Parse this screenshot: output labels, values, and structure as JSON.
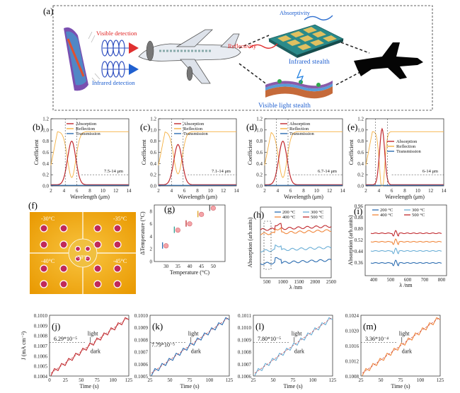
{
  "panel_a": {
    "label": "(a)",
    "visible_detection": "Visible detection",
    "infrared_detection": "Infrared detection",
    "absorptivity": "Absorptivity",
    "reflectivity": "Reflectivity",
    "infrared_stealth": "Infrared stealth",
    "visible_light_stealth": "Visible light stealth"
  },
  "spectra_panels": [
    {
      "label": "(b)",
      "range_note": "7.5-14 μm",
      "legend": [
        "Absorption",
        "Reflection",
        "Transmission"
      ],
      "ylabel": "Coefficient",
      "xlabel": "Wavelength (μm)"
    },
    {
      "label": "(c)",
      "range_note": "7.1-14 μm",
      "legend": [
        "Absorption",
        "Reflection",
        "Transmission"
      ],
      "ylabel": "Coefficient",
      "xlabel": "Wavelength (μm)"
    },
    {
      "label": "(d)",
      "range_note": "6.7-14 μm",
      "legend": [
        "Absorption",
        "Reflection",
        "Transmission"
      ],
      "ylabel": "Coefficient",
      "xlabel": "Wavelength (μm)"
    },
    {
      "label": "(e)",
      "range_note": "6-14 μm",
      "legend": [
        "Absorption",
        "Reflection",
        "Transmission"
      ],
      "ylabel": "Coefficient",
      "xlabel": "Wavelength (μm)"
    }
  ],
  "panel_f": {
    "label": "(f)",
    "temps": [
      "-30°C",
      "-35°C",
      "-40°C",
      "-45°C",
      "-50°C"
    ]
  },
  "panel_g": {
    "label": "(g)",
    "xlabel": "Temperature (°C)",
    "ylabel": "ΔTemperature (°C)"
  },
  "panel_h": {
    "label": "(h)",
    "xlabel": "λ /nm",
    "ylabel": "Absorption (arb.units)",
    "legend": [
      "200 °C",
      "300 °C",
      "400 °C",
      "500 °C"
    ]
  },
  "panel_i": {
    "label": "(i)",
    "xlabel": "λ /nm",
    "ylabel": "Absorption (arb.units)",
    "legend": [
      "200 °C",
      "300 °C",
      "400 °C",
      "500 °C"
    ]
  },
  "current_panels": [
    {
      "label": "(j)",
      "rate": "6.29*10⁻⁵",
      "light": "light",
      "dark": "dark",
      "ylabel": "J (mA cm⁻²)",
      "xlabel": "Time (s)"
    },
    {
      "label": "(k)",
      "rate": "7.79*10⁻⁵",
      "light": "light",
      "dark": "dark",
      "xlabel": "Time (s)"
    },
    {
      "label": "(l)",
      "rate": "7.80*10⁻⁵",
      "light": "light",
      "dark": "dark",
      "xlabel": "Time (s)"
    },
    {
      "label": "(m)",
      "rate": "3.36*10⁻⁴",
      "light": "light",
      "dark": "dark",
      "xlabel": "Time (s)"
    }
  ],
  "chart_data": [
    {
      "type": "line",
      "title": "(b)",
      "xlabel": "Wavelength (μm)",
      "ylabel": "Coefficient",
      "xlim": [
        2,
        14
      ],
      "ylim": [
        0,
        1.2
      ],
      "series": [
        {
          "name": "Absorption",
          "peak_x": 5.2,
          "peak_y": 0.78
        },
        {
          "name": "Reflection",
          "min_x": 5.2,
          "plateau": 0.97
        },
        {
          "name": "Transmission",
          "values": [
            0,
            0
          ]
        }
      ]
    },
    {
      "type": "line",
      "title": "(c)",
      "xlabel": "Wavelength (μm)",
      "ylabel": "Coefficient",
      "xlim": [
        2,
        14
      ],
      "ylim": [
        0,
        1.2
      ],
      "series": [
        {
          "name": "Absorption",
          "peak_x": 5.0,
          "peak_y": 0.72
        },
        {
          "name": "Reflection",
          "min_x": 5.0,
          "plateau": 0.97
        },
        {
          "name": "Transmission",
          "values": [
            0,
            0
          ]
        }
      ]
    },
    {
      "type": "line",
      "title": "(d)",
      "xlabel": "Wavelength (μm)",
      "ylabel": "Coefficient",
      "xlim": [
        2,
        14
      ],
      "ylim": [
        0,
        1.2
      ],
      "series": [
        {
          "name": "Absorption",
          "peak_x": 4.8,
          "peak_y": 0.78
        },
        {
          "name": "Reflection",
          "min_x": 4.8,
          "plateau": 0.97
        },
        {
          "name": "Transmission",
          "values": [
            0,
            0
          ]
        }
      ]
    },
    {
      "type": "line",
      "title": "(e)",
      "xlabel": "Wavelength (μm)",
      "ylabel": "Coefficient",
      "xlim": [
        2,
        14
      ],
      "ylim": [
        0,
        1.2
      ],
      "series": [
        {
          "name": "Absorption",
          "peak_x": 4.5,
          "peak_y": 1.0
        },
        {
          "name": "Reflection",
          "min_x": 4.5,
          "plateau": 0.97
        },
        {
          "name": "Transmission",
          "values": [
            0,
            0
          ]
        }
      ]
    },
    {
      "type": "scatter",
      "title": "(g)",
      "xlabel": "Temperature (°C)",
      "ylabel": "ΔTemperature (°C)",
      "xlim": [
        25,
        55
      ],
      "ylim": [
        0,
        9
      ],
      "x": [
        30,
        35,
        40,
        45,
        50
      ],
      "y": [
        2.5,
        5,
        6,
        7.5,
        8.5
      ]
    },
    {
      "type": "line",
      "title": "(j)",
      "xlabel": "Time (s)",
      "ylabel": "J (mA cm⁻²)",
      "xlim": [
        0,
        125
      ],
      "ylim": [
        0.1004,
        0.101
      ]
    },
    {
      "type": "line",
      "title": "(k)",
      "xlabel": "Time (s)",
      "xlim": [
        25,
        125
      ],
      "ylim": [
        0.1005,
        0.101
      ]
    },
    {
      "type": "line",
      "title": "(l)",
      "xlabel": "Time (s)",
      "xlim": [
        25,
        125
      ],
      "ylim": [
        0.1005,
        0.1011
      ]
    },
    {
      "type": "line",
      "title": "(m)",
      "xlabel": "Time (s)",
      "xlim": [
        25,
        125
      ],
      "ylim": [
        0.1008,
        0.1024
      ]
    }
  ]
}
